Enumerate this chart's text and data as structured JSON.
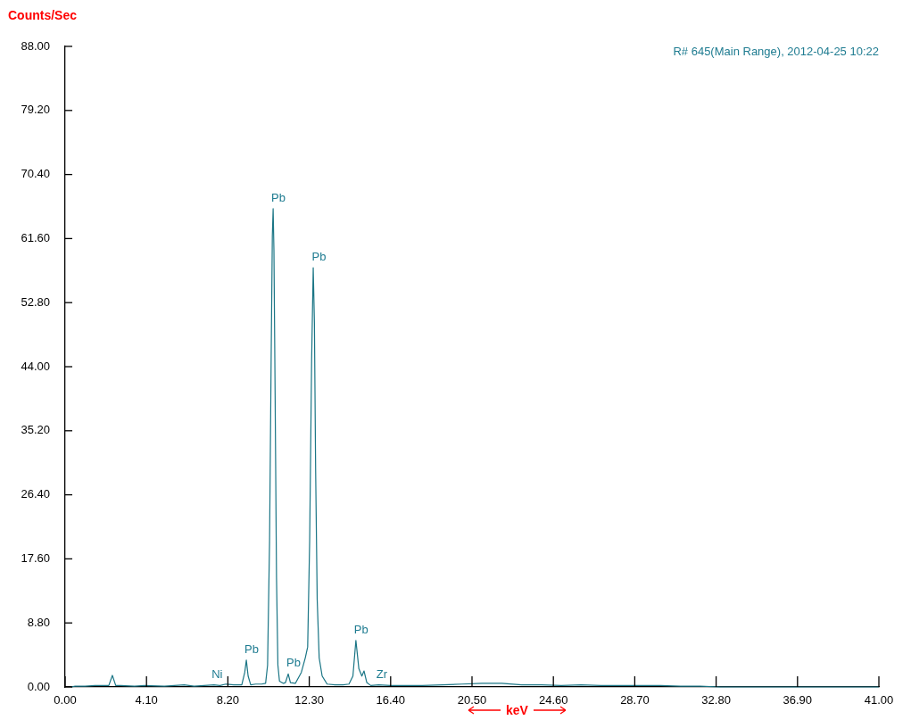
{
  "chart_data": {
    "type": "line",
    "ylabel": "Counts/Sec",
    "xlabel": "keV",
    "annotations": [
      "R# 645(Main Range), 2012-04-25 10:22",
      {
        "text": "Pb",
        "x": 10.48,
        "y": 65.7
      },
      {
        "text": "Pb",
        "x": 12.52,
        "y": 57.6
      },
      {
        "text": "Pb",
        "x": 9.13,
        "y": 3.7
      },
      {
        "text": "Pb",
        "x": 11.24,
        "y": 1.8
      },
      {
        "text": "Pb",
        "x": 14.65,
        "y": 6.4
      },
      {
        "text": "Ni",
        "x": 7.47,
        "y": 0.3
      },
      {
        "text": "Zr",
        "x": 15.77,
        "y": 0.3
      }
    ],
    "series": [
      {
        "color": "#1a7585",
        "x": [
          0.3,
          0.5,
          1,
          1.5,
          2.0,
          2.2,
          2.38,
          2.55,
          2.8,
          3.5,
          4,
          5,
          6,
          6.5,
          7,
          7.5,
          7.8,
          8.1,
          8.5,
          8.9,
          9.05,
          9.13,
          9.22,
          9.35,
          9.6,
          9.9,
          10.1,
          10.2,
          10.3,
          10.38,
          10.44,
          10.48,
          10.52,
          10.58,
          10.65,
          10.72,
          10.8,
          11.0,
          11.1,
          11.24,
          11.35,
          11.6,
          11.9,
          12.1,
          12.22,
          12.32,
          12.42,
          12.5,
          12.56,
          12.62,
          12.7,
          12.8,
          12.95,
          13.2,
          13.6,
          14.0,
          14.3,
          14.5,
          14.65,
          14.8,
          14.95,
          15.06,
          15.2,
          15.4,
          15.8,
          16.4,
          17,
          18,
          19,
          20,
          21,
          22,
          23,
          24,
          25,
          26,
          27,
          28,
          29,
          30,
          31,
          32,
          33,
          34,
          35,
          37,
          39,
          41
        ],
        "values": [
          0,
          0.1,
          0.1,
          0.2,
          0.2,
          0.2,
          1.6,
          0.2,
          0.2,
          0.1,
          0.2,
          0.1,
          0.3,
          0.1,
          0.2,
          0.3,
          0.2,
          0.4,
          0.3,
          0.3,
          2,
          3.7,
          1.5,
          0.3,
          0.4,
          0.4,
          0.5,
          3,
          20,
          45,
          62,
          65.7,
          60,
          40,
          15,
          3,
          0.8,
          0.5,
          0.6,
          1.8,
          0.6,
          0.5,
          2,
          4,
          5.5,
          20,
          45,
          57.6,
          50,
          30,
          12,
          4,
          1.5,
          0.4,
          0.3,
          0.3,
          0.4,
          1.5,
          6.4,
          2.5,
          1.5,
          2.2,
          0.6,
          0.2,
          0.3,
          0.2,
          0.2,
          0.2,
          0.3,
          0.4,
          0.5,
          0.5,
          0.3,
          0.3,
          0.2,
          0.3,
          0.2,
          0.2,
          0.2,
          0.2,
          0.1,
          0.1,
          0,
          0,
          0,
          0,
          0,
          0
        ]
      }
    ],
    "xlim": [
      0,
      41
    ],
    "ylim": [
      0,
      88
    ],
    "xticks": [
      {
        "value": 0,
        "label": "0.00"
      },
      {
        "value": 4.1,
        "label": "4.10"
      },
      {
        "value": 8.2,
        "label": "8.20"
      },
      {
        "value": 12.3,
        "label": "12.30"
      },
      {
        "value": 16.4,
        "label": "16.40"
      },
      {
        "value": 20.5,
        "label": "20.50"
      },
      {
        "value": 24.6,
        "label": "24.60"
      },
      {
        "value": 28.7,
        "label": "28.70"
      },
      {
        "value": 32.8,
        "label": "32.80"
      },
      {
        "value": 36.9,
        "label": "36.90"
      },
      {
        "value": 41,
        "label": "41.00"
      }
    ],
    "yticks": [
      {
        "value": 0,
        "label": "0.00"
      },
      {
        "value": 8.8,
        "label": "8.80"
      },
      {
        "value": 17.6,
        "label": "17.60"
      },
      {
        "value": 26.4,
        "label": "26.40"
      },
      {
        "value": 35.2,
        "label": "35.20"
      },
      {
        "value": 44,
        "label": "44.00"
      },
      {
        "value": 52.8,
        "label": "52.80"
      },
      {
        "value": 61.6,
        "label": "61.60"
      },
      {
        "value": 70.4,
        "label": "70.40"
      },
      {
        "value": 79.2,
        "label": "79.20"
      },
      {
        "value": 88,
        "label": "88.00"
      }
    ],
    "grid": false,
    "legend": false,
    "marker": "none",
    "line_style": "solid"
  }
}
